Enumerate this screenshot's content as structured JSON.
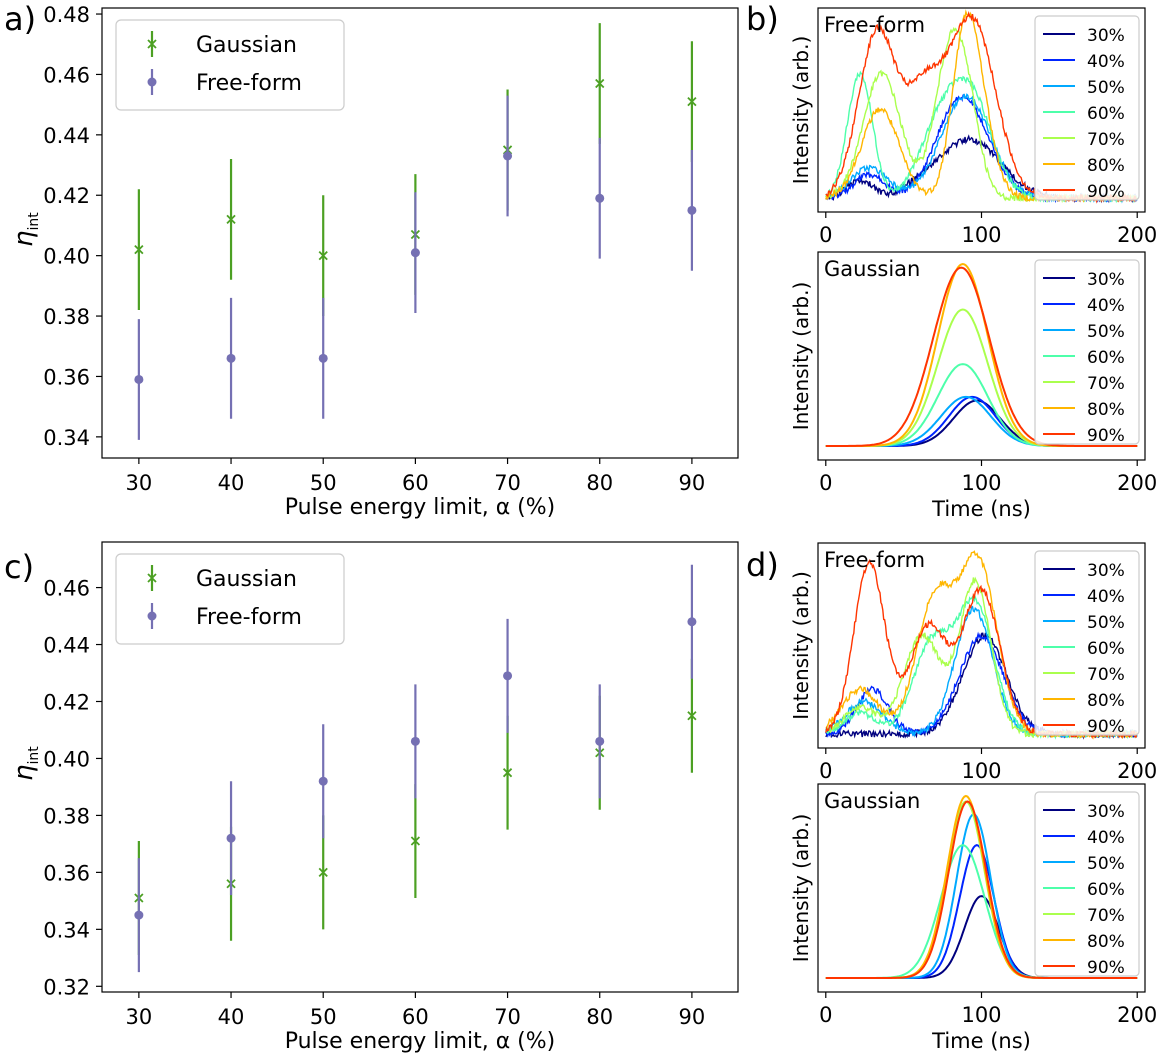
{
  "chart_data": [
    {
      "panel": "a)",
      "type": "scatter",
      "xlabel": "Pulse energy limit, α (%)",
      "ylabel": "η",
      "ylabel_sub": "int",
      "x": [
        30,
        40,
        50,
        60,
        70,
        80,
        90
      ],
      "xlim": [
        26,
        95
      ],
      "ylim": [
        0.333,
        0.482
      ],
      "xticks": [
        "30",
        "40",
        "50",
        "60",
        "70",
        "80",
        "90"
      ],
      "yticks": [
        0.34,
        0.36,
        0.38,
        0.4,
        0.42,
        0.44,
        0.46,
        0.48
      ],
      "ytick_labels": [
        "0.34",
        "0.36",
        "0.38",
        "0.40",
        "0.42",
        "0.44",
        "0.46",
        "0.48"
      ],
      "legend_position": "top-left",
      "series": [
        {
          "name": "Gaussian",
          "marker": "x",
          "color": "#4ca023",
          "values": [
            0.402,
            0.412,
            0.4,
            0.407,
            0.435,
            0.457,
            0.451
          ],
          "errors": [
            0.02,
            0.02,
            0.02,
            0.02,
            0.02,
            0.02,
            0.02
          ]
        },
        {
          "name": "Free-form",
          "marker": "o",
          "color": "#7570b3",
          "values": [
            0.359,
            0.366,
            0.366,
            0.401,
            0.433,
            0.419,
            0.415
          ],
          "errors": [
            0.02,
            0.02,
            0.02,
            0.02,
            0.02,
            0.02,
            0.02
          ]
        }
      ]
    },
    {
      "panel": "c)",
      "type": "scatter",
      "xlabel": "Pulse energy limit, α (%)",
      "ylabel": "η",
      "ylabel_sub": "int",
      "x": [
        30,
        40,
        50,
        60,
        70,
        80,
        90
      ],
      "xlim": [
        26,
        95
      ],
      "ylim": [
        0.318,
        0.476
      ],
      "xticks": [
        "30",
        "40",
        "50",
        "60",
        "70",
        "80",
        "90"
      ],
      "yticks": [
        0.32,
        0.34,
        0.36,
        0.38,
        0.4,
        0.42,
        0.44,
        0.46
      ],
      "ytick_labels": [
        "0.32",
        "0.34",
        "0.36",
        "0.38",
        "0.40",
        "0.42",
        "0.44",
        "0.46"
      ],
      "legend_position": "top-left",
      "series": [
        {
          "name": "Gaussian",
          "marker": "x",
          "color": "#4ca023",
          "values": [
            0.351,
            0.356,
            0.36,
            0.371,
            0.395,
            0.402,
            0.415
          ],
          "errors": [
            0.02,
            0.02,
            0.02,
            0.02,
            0.02,
            0.02,
            0.02
          ]
        },
        {
          "name": "Free-form",
          "marker": "o",
          "color": "#7570b3",
          "values": [
            0.345,
            0.372,
            0.392,
            0.406,
            0.429,
            0.406,
            0.448
          ],
          "errors": [
            0.02,
            0.02,
            0.02,
            0.02,
            0.02,
            0.02,
            0.02
          ]
        }
      ]
    },
    {
      "panel": "b)",
      "type": "line",
      "title": "Free-form",
      "ylabel": "Intensity (arb.)",
      "xlim": [
        -5,
        205
      ],
      "xticks": [
        "0",
        "100",
        "200"
      ],
      "legend": [
        "30%",
        "40%",
        "50%",
        "60%",
        "70%",
        "80%",
        "90%"
      ],
      "colors": [
        "#00007f",
        "#0025ff",
        "#00a9ff",
        "#4dffaa",
        "#aaff4d",
        "#ffb600",
        "#ff3500"
      ],
      "shape": "free-form",
      "series": [
        {
          "name": "30%",
          "gaussians": [
            [
              22,
              8,
              0.1
            ],
            [
              60,
              10,
              0.04
            ],
            [
              92,
              20,
              0.33
            ]
          ]
        },
        {
          "name": "40%",
          "gaussians": [
            [
              28,
              10,
              0.13
            ],
            [
              82,
              14,
              0.4
            ],
            [
              98,
              14,
              0.26
            ]
          ]
        },
        {
          "name": "50%",
          "gaussians": [
            [
              28,
              12,
              0.17
            ],
            [
              90,
              16,
              0.57
            ]
          ]
        },
        {
          "name": "60%",
          "gaussians": [
            [
              22,
              8,
              0.7
            ],
            [
              70,
              12,
              0.3
            ],
            [
              92,
              14,
              0.6
            ]
          ]
        },
        {
          "name": "70%",
          "gaussians": [
            [
              36,
              12,
              0.7
            ],
            [
              80,
              10,
              0.82
            ],
            [
              92,
              8,
              0.3
            ]
          ]
        },
        {
          "name": "80%",
          "gaussians": [
            [
              35,
              12,
              0.5
            ],
            [
              88,
              8,
              0.55
            ],
            [
              96,
              10,
              0.6
            ]
          ]
        },
        {
          "name": "90%",
          "gaussians": [
            [
              33,
              12,
              0.93
            ],
            [
              63,
              12,
              0.55
            ],
            [
              94,
              15,
              1.0
            ]
          ]
        }
      ]
    },
    {
      "panel": "",
      "type": "line",
      "title": "Gaussian",
      "ylabel": "Intensity (arb.)",
      "xlabel": "Time (ns)",
      "xlim": [
        -5,
        205
      ],
      "xticks": [
        "0",
        "100",
        "200"
      ],
      "legend": [
        "30%",
        "40%",
        "50%",
        "60%",
        "70%",
        "80%",
        "90%"
      ],
      "colors": [
        "#00007f",
        "#0025ff",
        "#00a9ff",
        "#4dffaa",
        "#aaff4d",
        "#ffb600",
        "#ff3500"
      ],
      "shape": "gaussian",
      "series": [
        {
          "name": "30%",
          "gaussians": [
            [
              97,
              15,
              0.25
            ]
          ]
        },
        {
          "name": "40%",
          "gaussians": [
            [
              94,
              15,
              0.27
            ]
          ]
        },
        {
          "name": "50%",
          "gaussians": [
            [
              90,
              16,
              0.27
            ]
          ]
        },
        {
          "name": "60%",
          "gaussians": [
            [
              88,
              16,
              0.45
            ]
          ]
        },
        {
          "name": "70%",
          "gaussians": [
            [
              88,
              16,
              0.75
            ]
          ]
        },
        {
          "name": "80%",
          "gaussians": [
            [
              88,
              16,
              1.0
            ]
          ]
        },
        {
          "name": "90%",
          "gaussians": [
            [
              87,
              18,
              0.98
            ]
          ]
        }
      ]
    },
    {
      "panel": "d)",
      "type": "line",
      "title": "Free-form",
      "ylabel": "Intensity (arb.)",
      "xlim": [
        -5,
        205
      ],
      "xticks": [
        "0",
        "100",
        "200"
      ],
      "legend": [
        "30%",
        "40%",
        "50%",
        "60%",
        "70%",
        "80%",
        "90%"
      ],
      "colors": [
        "#00007f",
        "#0025ff",
        "#00a9ff",
        "#4dffaa",
        "#aaff4d",
        "#ffb600",
        "#ff3500"
      ],
      "shape": "free-form",
      "series": [
        {
          "name": "30%",
          "gaussians": [
            [
              102,
              14,
              0.55
            ]
          ]
        },
        {
          "name": "40%",
          "gaussians": [
            [
              30,
              10,
              0.25
            ],
            [
              100,
              14,
              0.55
            ]
          ]
        },
        {
          "name": "50%",
          "gaussians": [
            [
              25,
              12,
              0.18
            ],
            [
              95,
              12,
              0.7
            ]
          ]
        },
        {
          "name": "60%",
          "gaussians": [
            [
              22,
              10,
              0.12
            ],
            [
              68,
              12,
              0.5
            ],
            [
              96,
              12,
              0.72
            ]
          ]
        },
        {
          "name": "70%",
          "gaussians": [
            [
              22,
              10,
              0.15
            ],
            [
              62,
              12,
              0.55
            ],
            [
              96,
              10,
              0.85
            ]
          ]
        },
        {
          "name": "80%",
          "gaussians": [
            [
              22,
              12,
              0.25
            ],
            [
              70,
              12,
              0.75
            ],
            [
              98,
              12,
              0.95
            ]
          ]
        },
        {
          "name": "90%",
          "gaussians": [
            [
              28,
              10,
              0.95
            ],
            [
              66,
              12,
              0.6
            ],
            [
              100,
              12,
              0.8
            ]
          ]
        }
      ]
    },
    {
      "panel": "",
      "type": "line",
      "title": "Gaussian",
      "ylabel": "Intensity (arb.)",
      "xlabel": "Time (ns)",
      "xlim": [
        -5,
        205
      ],
      "xticks": [
        "0",
        "100",
        "200"
      ],
      "legend": [
        "30%",
        "40%",
        "50%",
        "60%",
        "70%",
        "80%",
        "90%"
      ],
      "colors": [
        "#00007f",
        "#0025ff",
        "#00a9ff",
        "#4dffaa",
        "#aaff4d",
        "#ffb600",
        "#ff3500"
      ],
      "shape": "gaussian",
      "series": [
        {
          "name": "30%",
          "gaussians": [
            [
              100,
              11,
              0.45
            ]
          ]
        },
        {
          "name": "40%",
          "gaussians": [
            [
              97,
              11,
              0.73
            ]
          ]
        },
        {
          "name": "50%",
          "gaussians": [
            [
              95,
              11,
              0.9
            ]
          ]
        },
        {
          "name": "60%",
          "gaussians": [
            [
              88,
              14,
              0.73
            ]
          ]
        },
        {
          "name": "70%",
          "gaussians": [
            [
              90,
              12,
              0.97
            ]
          ]
        },
        {
          "name": "80%",
          "gaussians": [
            [
              90,
              12,
              1.0
            ]
          ]
        },
        {
          "name": "90%",
          "gaussians": [
            [
              91,
              12,
              0.97
            ]
          ]
        }
      ]
    }
  ]
}
